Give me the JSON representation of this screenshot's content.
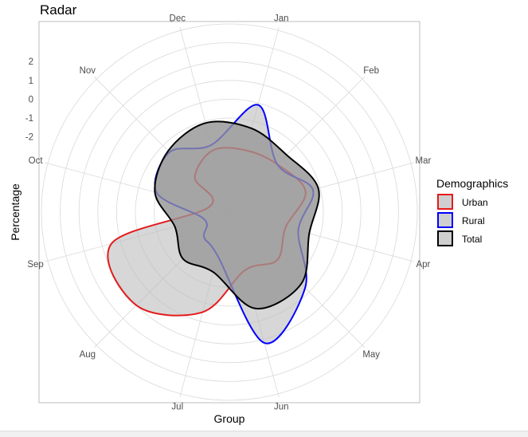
{
  "chart_data": {
    "type": "radar",
    "title": "Radar",
    "xlabel": "Group",
    "ylabel": "Percentage",
    "y_ticks": [
      "2",
      "1",
      "0",
      "-1",
      "-2"
    ],
    "categories": [
      "Jan",
      "Feb",
      "Mar",
      "Apr",
      "May",
      "Jun",
      "Jul",
      "Aug",
      "Sep",
      "Oct",
      "Nov",
      "Dec"
    ],
    "radial_range": [
      -6,
      4
    ],
    "grid": true,
    "legend": {
      "title": "Demographics",
      "position": "right"
    },
    "series": [
      {
        "name": "Urban",
        "color": "#e41a1c",
        "fill": "none",
        "values": [
          -2.6,
          -2.4,
          -1.8,
          -2.9,
          -2.4,
          -2.8,
          -0.5,
          1.0,
          0.5,
          -4.9,
          -3.4,
          -2.6
        ]
      },
      {
        "name": "Rural",
        "color": "#0000ff",
        "fill": "none",
        "values": [
          -0.1,
          -2.4,
          -1.4,
          -2.2,
          -0.3,
          1.2,
          -3.6,
          -4.1,
          -4.6,
          -2.0,
          -1.5,
          -2.3
        ]
      },
      {
        "name": "Total",
        "color": "#000000",
        "fill": "#999999",
        "values": [
          -1.4,
          -1.7,
          -1.1,
          -1.6,
          -0.6,
          -0.7,
          -2.7,
          -2.5,
          -3.0,
          -1.9,
          -1.4,
          -1.1
        ]
      }
    ]
  }
}
